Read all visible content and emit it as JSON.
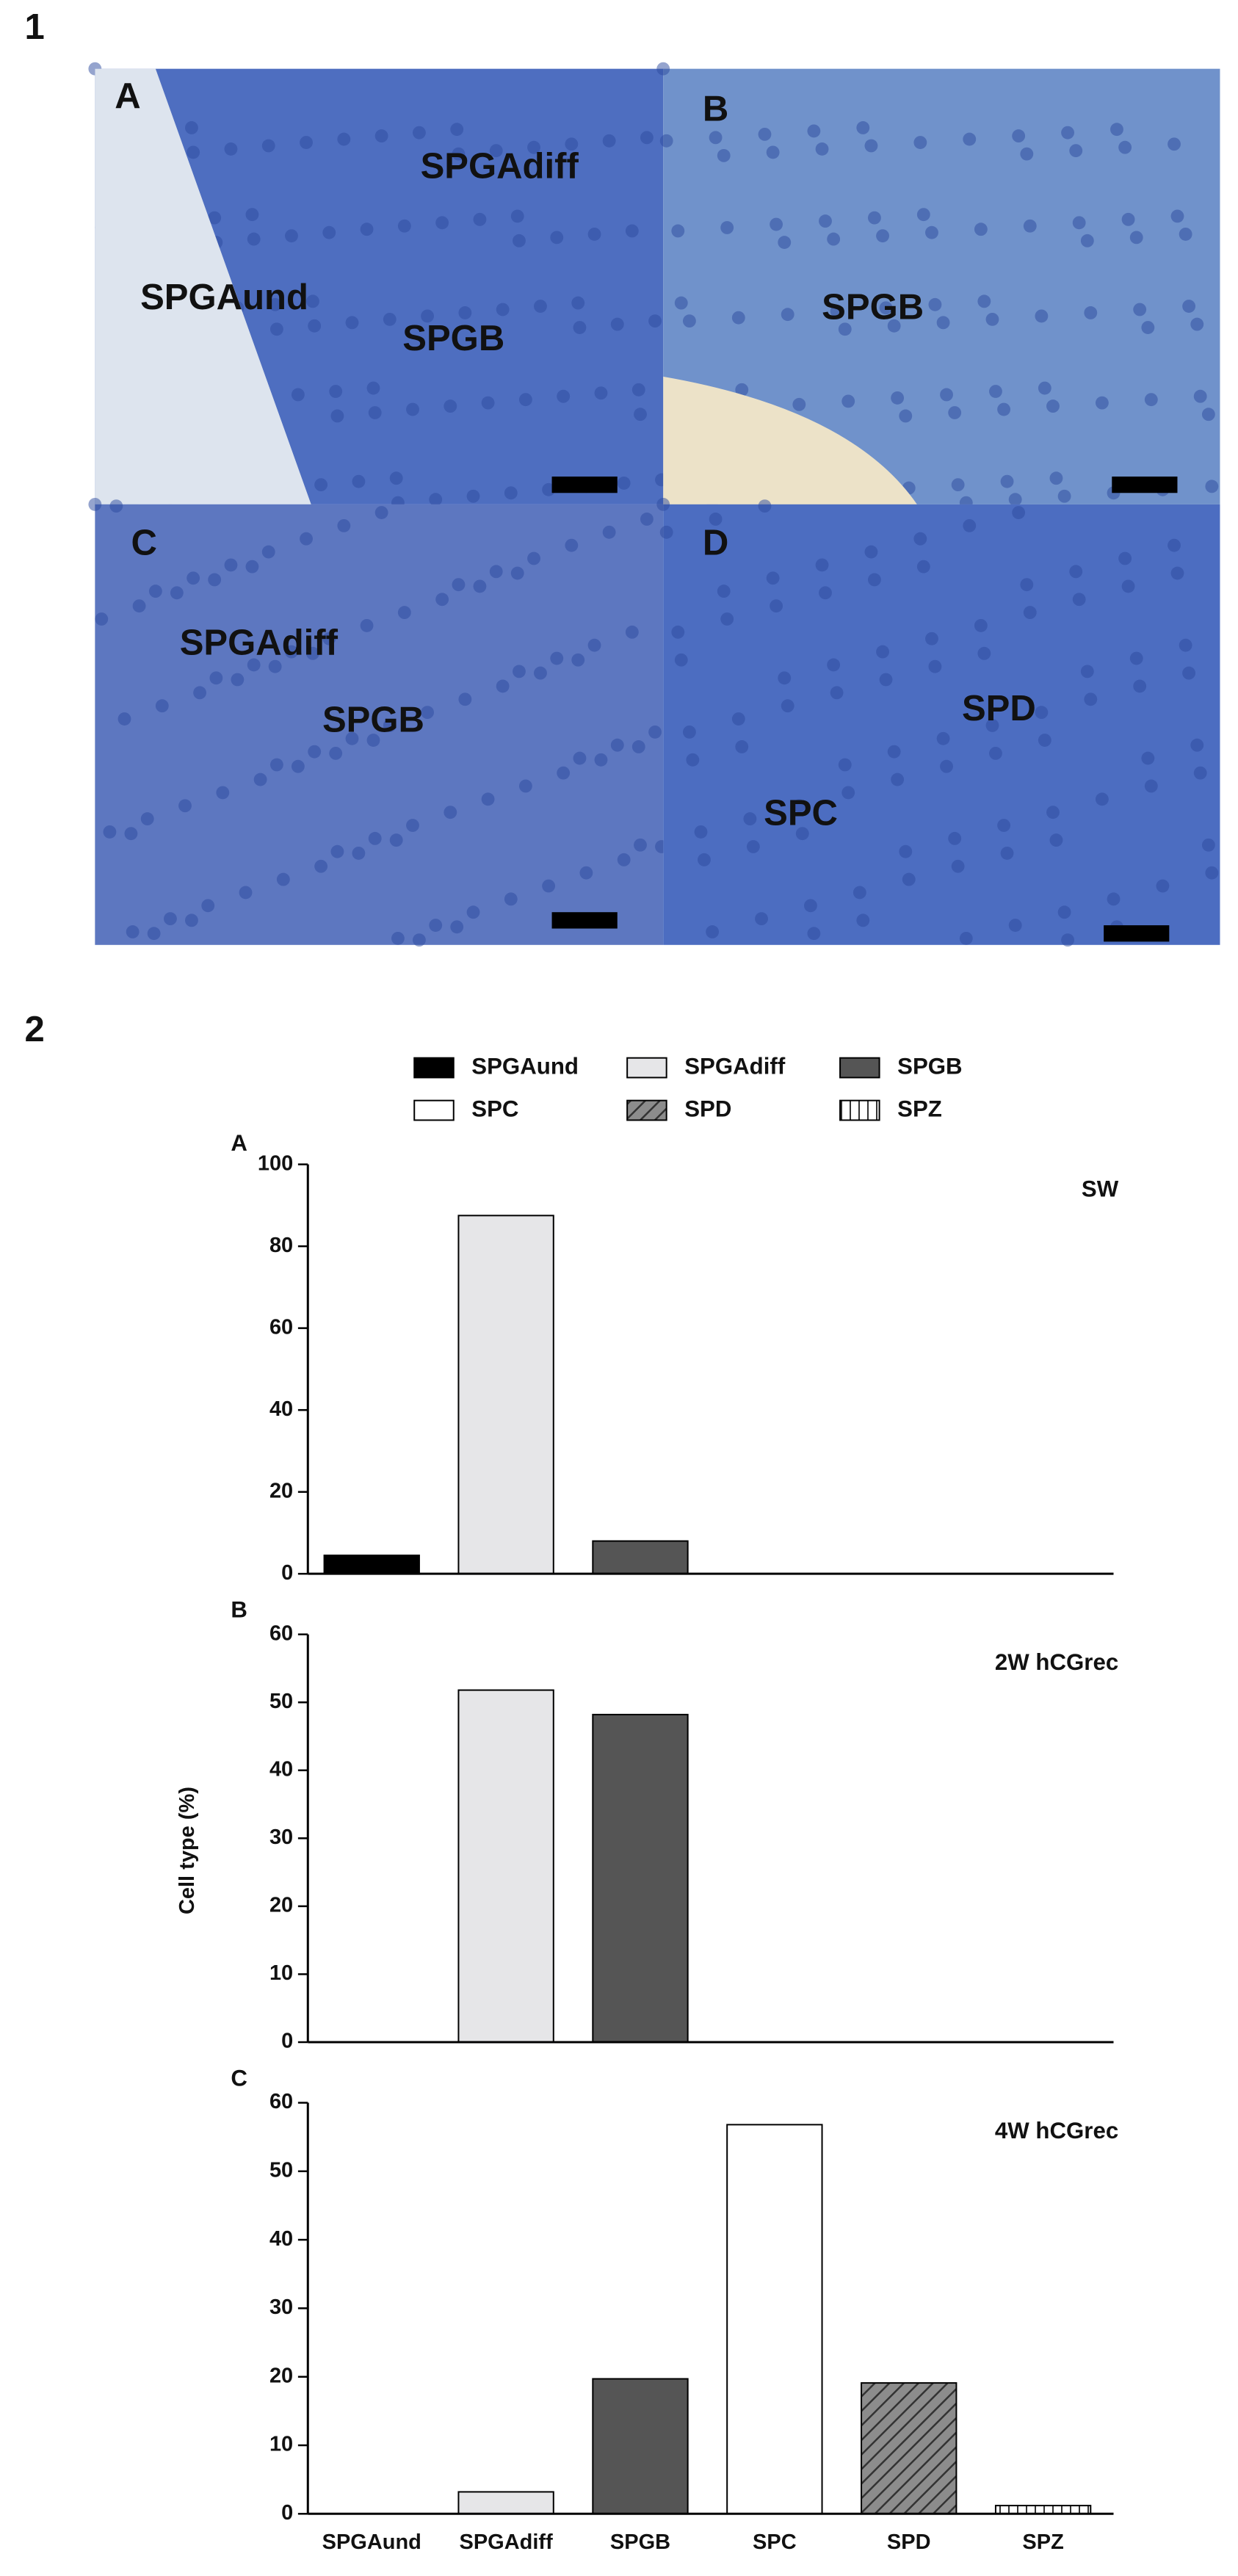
{
  "figure_1": {
    "label": "1",
    "panels": [
      {
        "letter": "A",
        "labels": [
          "SPGAund",
          "SPGAdiff",
          "SPGB"
        ]
      },
      {
        "letter": "B",
        "labels": [
          "SPGB"
        ]
      },
      {
        "letter": "C",
        "labels": [
          "SPGAdiff",
          "SPGB"
        ]
      },
      {
        "letter": "D",
        "labels": [
          "SPD",
          "SPC"
        ]
      }
    ]
  },
  "figure_2": {
    "label": "2",
    "y_axis_label": "Cell type (%)",
    "legend": [
      {
        "name": "SPGAund",
        "color": "#000000"
      },
      {
        "name": "SPGAdiff",
        "color": "#e6e6e8"
      },
      {
        "name": "SPGB",
        "color": "#555555"
      },
      {
        "name": "SPC",
        "color": "#ffffff"
      },
      {
        "name": "SPD",
        "color": "#8c8c8c",
        "pattern": "diagonal"
      },
      {
        "name": "SPZ",
        "color": "#ffffff",
        "pattern": "vertical"
      }
    ]
  },
  "chart_data": [
    {
      "type": "bar",
      "panel": "A",
      "title": "SW",
      "values": [
        4.5,
        87.5,
        8,
        0,
        0,
        0
      ],
      "ylim": [
        0,
        100
      ],
      "yticks": [
        0,
        20,
        40,
        60,
        80,
        100
      ]
    },
    {
      "type": "bar",
      "panel": "B",
      "title": "2W hCGrec",
      "values": [
        0,
        51.8,
        48.2,
        0,
        0,
        0
      ],
      "ylim": [
        0,
        60
      ],
      "yticks": [
        0,
        10,
        20,
        30,
        40,
        50,
        60
      ]
    },
    {
      "type": "bar",
      "panel": "C",
      "title": "4W hCGrec",
      "categories": [
        "SPGAund",
        "SPGAdiff",
        "SPGB",
        "SPC",
        "SPD",
        "SPZ"
      ],
      "values": [
        0,
        3.2,
        19.7,
        56.8,
        19.1,
        1.2
      ],
      "ylim": [
        0,
        60
      ],
      "yticks": [
        0,
        10,
        20,
        30,
        40,
        50,
        60
      ]
    }
  ]
}
